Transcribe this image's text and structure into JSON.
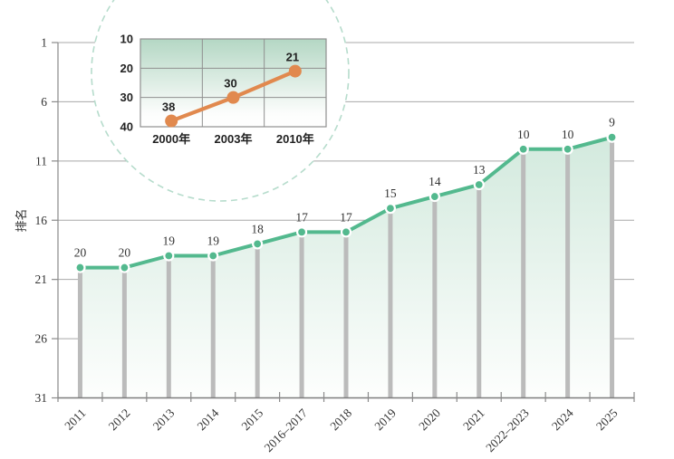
{
  "colors": {
    "green_line": "#53b98e",
    "marker_ring": "#ffffff",
    "stem_gray": "#bbbbbb",
    "grid_gray": "#a8a8a8",
    "axis_gray": "#8a8a8a",
    "baseline_gray": "#7d7d7d",
    "area_top": "#c3e2d2",
    "area_bottom": "#fdfefd",
    "orange_line": "#e1894e",
    "inset_bg_top": "#b4d7c4",
    "inset_bg_bottom": "#ffffff",
    "inset_border": "#8f8f8f",
    "circle_dash": "#b6dccc",
    "main_text": "#333333",
    "inset_text": "#222222"
  },
  "chart_data": [
    {
      "type": "line",
      "name": "main-ranking-trend",
      "title": "",
      "xlabel": "",
      "ylabel": "排名",
      "categories": [
        "2011",
        "2012",
        "2013",
        "2014",
        "2015",
        "2016–2017",
        "2018",
        "2019",
        "2020",
        "2021",
        "2022–2023",
        "2024",
        "2025"
      ],
      "values": [
        20,
        20,
        19,
        19,
        18,
        17,
        17,
        15,
        14,
        13,
        10,
        10,
        9
      ],
      "data_labels": [
        "20",
        "20",
        "19",
        "19",
        "18",
        "17",
        "17",
        "15",
        "14",
        "13",
        "10",
        "10",
        "9"
      ],
      "yticks": [
        1,
        6,
        11,
        16,
        21,
        26,
        31
      ],
      "ylim": [
        1,
        31
      ],
      "y_inverted": true,
      "grid": true,
      "legend": "none",
      "marker": "circle",
      "area_fill": true,
      "stems": true
    },
    {
      "type": "line",
      "name": "inset-historic-ranking",
      "title": "",
      "xlabel": "",
      "ylabel": "",
      "categories": [
        "2000年",
        "2003年",
        "2010年"
      ],
      "values": [
        38,
        30,
        21
      ],
      "data_labels": [
        "38",
        "30",
        "21"
      ],
      "yticks": [
        10,
        20,
        30,
        40
      ],
      "ylim": [
        10,
        40
      ],
      "y_inverted": true,
      "grid": true,
      "legend": "none",
      "marker": "circle"
    }
  ]
}
